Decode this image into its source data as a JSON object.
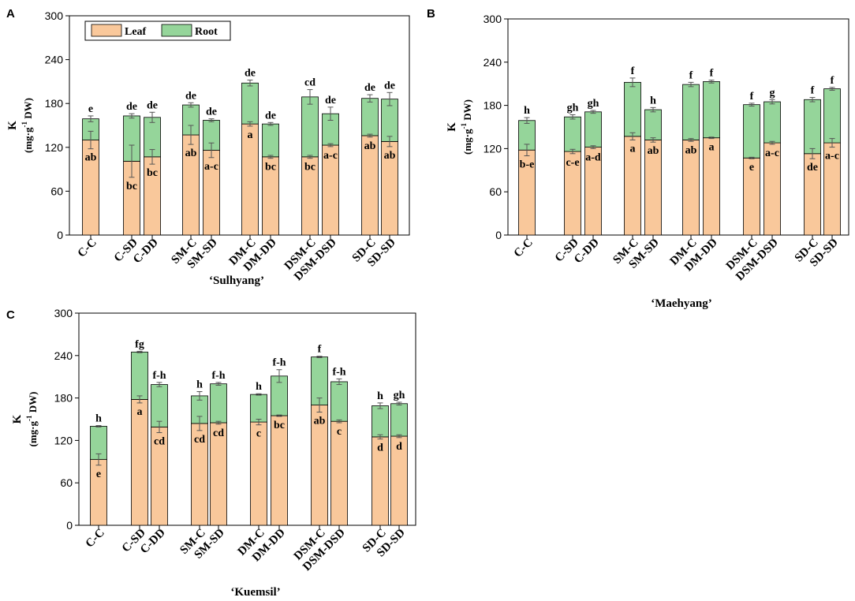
{
  "colors": {
    "leaf": "#f9c89b",
    "root": "#95d59a",
    "stroke": "#000000",
    "error": "#555555"
  },
  "chart_data": [
    {
      "type": "bar",
      "stacked": true,
      "panel_label": "A",
      "cultivar_label": "‘Sulhyang’",
      "ylabel": "K",
      "ylabel_unit_pre": "(mg·g",
      "ylabel_unit_sup": "-1",
      "ylabel_unit_post": " DW)",
      "ylim": [
        0,
        300
      ],
      "yticks": [
        0,
        60,
        120,
        180,
        240,
        300
      ],
      "legend": [
        "Leaf",
        "Root"
      ],
      "categories": [
        "C-C",
        "C-SD",
        "C-DD",
        "SM-C",
        "SM-SD",
        "DM-C",
        "DM-DD",
        "DSM-C",
        "DSM-DSD",
        "SD-C",
        "SD-SD"
      ],
      "series": [
        {
          "name": "Leaf",
          "values": [
            130,
            101,
            107,
            137,
            116,
            152,
            107,
            107,
            123,
            136,
            128
          ],
          "errors": [
            12,
            22,
            10,
            13,
            10,
            3,
            2,
            2,
            2,
            2,
            7
          ]
        },
        {
          "name": "Root",
          "values": [
            29,
            62,
            54,
            41,
            41,
            56,
            45,
            82,
            43,
            51,
            58
          ],
          "errors": [
            4,
            3,
            7,
            3,
            2,
            4,
            2,
            10,
            9,
            5,
            9
          ]
        }
      ],
      "leaf_letters": [
        "ab",
        "bc",
        "bc",
        "ab",
        "a-c",
        "a",
        "bc",
        "bc",
        "a-c",
        "ab",
        "ab"
      ],
      "total_letters": [
        "e",
        "de",
        "de",
        "de",
        "de",
        "de",
        "de",
        "cd",
        "de",
        "de",
        "de"
      ]
    },
    {
      "type": "bar",
      "stacked": true,
      "panel_label": "B",
      "cultivar_label": "‘Maehyang’",
      "ylabel": "K",
      "ylabel_unit_pre": "(mg·g",
      "ylabel_unit_sup": "-1",
      "ylabel_unit_post": " DW)",
      "ylim": [
        0,
        300
      ],
      "yticks": [
        0,
        60,
        120,
        180,
        240,
        300
      ],
      "categories": [
        "C-C",
        "C-SD",
        "C-DD",
        "SM-C",
        "SM-SD",
        "DM-C",
        "DM-DD",
        "DSM-C",
        "DSM-DSD",
        "SD-C",
        "SD-SD"
      ],
      "series": [
        {
          "name": "Leaf",
          "values": [
            118,
            116,
            122,
            137,
            132,
            132,
            135,
            107,
            128,
            113,
            128
          ],
          "errors": [
            8,
            3,
            2,
            5,
            3,
            2,
            1,
            1,
            2,
            7,
            6
          ]
        },
        {
          "name": "Root",
          "values": [
            41,
            48,
            49,
            75,
            42,
            77,
            78,
            74,
            57,
            75,
            75
          ],
          "errors": [
            4,
            3,
            2,
            6,
            3,
            3,
            2,
            2,
            3,
            3,
            2
          ]
        }
      ],
      "leaf_letters": [
        "b-e",
        "c-e",
        "a-d",
        "a",
        "ab",
        "ab",
        "a",
        "e",
        "a-c",
        "de",
        "a-c"
      ],
      "total_letters": [
        "h",
        "gh",
        "gh",
        "f",
        "h",
        "f",
        "f",
        "f",
        "g",
        "f",
        "f"
      ]
    },
    {
      "type": "bar",
      "stacked": true,
      "panel_label": "C",
      "cultivar_label": "‘Kuemsil’",
      "ylabel": "K",
      "ylabel_unit_pre": "(mg·g",
      "ylabel_unit_sup": "-1",
      "ylabel_unit_post": " DW)",
      "ylim": [
        0,
        300
      ],
      "yticks": [
        0,
        60,
        120,
        180,
        240,
        300
      ],
      "categories": [
        "C-C",
        "C-SD",
        "C-DD",
        "SM-C",
        "SM-SD",
        "DM-C",
        "DM-DD",
        "DSM-C",
        "DSM-DSD",
        "SD-C",
        "SD-SD"
      ],
      "series": [
        {
          "name": "Leaf",
          "values": [
            93,
            178,
            139,
            144,
            145,
            146,
            155,
            170,
            147,
            125,
            126
          ],
          "errors": [
            8,
            5,
            8,
            10,
            2,
            4,
            1,
            10,
            2,
            3,
            2
          ]
        },
        {
          "name": "Root",
          "values": [
            47,
            67,
            60,
            39,
            55,
            39,
            56,
            68,
            56,
            44,
            46
          ],
          "errors": [
            1,
            1,
            3,
            6,
            2,
            1,
            9,
            1,
            4,
            4,
            2
          ]
        }
      ],
      "leaf_letters": [
        "e",
        "a",
        "cd",
        "cd",
        "cd",
        "c",
        "bc",
        "ab",
        "c",
        "d",
        "d"
      ],
      "total_letters": [
        "h",
        "fg",
        "f-h",
        "h",
        "f-h",
        "h",
        "f-h",
        "f",
        "f-h",
        "h",
        "gh"
      ]
    }
  ]
}
